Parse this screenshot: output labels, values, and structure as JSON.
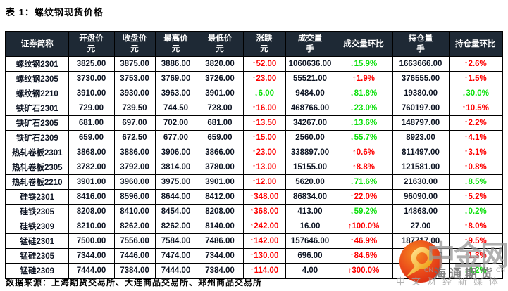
{
  "title": "表 1：螺纹钢现货价格",
  "footer": "数据来源：上海期货交易所、大连商品交易所、郑州商品交易所",
  "colors": {
    "header_bg": "#1e2935",
    "up": "#fe0000",
    "down": "#0be00b",
    "border": "#000000"
  },
  "table": {
    "widths": [
      89,
      65,
      58,
      59,
      66,
      60,
      70,
      82,
      80,
      76
    ],
    "columns": [
      {
        "label": "证券简称",
        "unit": ""
      },
      {
        "label": "开盘价",
        "unit": "元"
      },
      {
        "label": "收盘价",
        "unit": "元"
      },
      {
        "label": "最高价",
        "unit": "元"
      },
      {
        "label": "最低价",
        "unit": "元"
      },
      {
        "label": "涨跌",
        "unit": "元"
      },
      {
        "label": "成交量",
        "unit": "手"
      },
      {
        "label": "成交量环比",
        "unit": ""
      },
      {
        "label": "持仓量",
        "unit": "手"
      },
      {
        "label": "持仓量环比",
        "unit": ""
      }
    ],
    "rows": [
      {
        "name": "螺纹钢2301",
        "open": "3825.00",
        "close": "3875.00",
        "high": "3886.00",
        "low": "3820.00",
        "change": {
          "text": "↑52.00",
          "dir": "up"
        },
        "volume": "1060636.00",
        "volume_mom": {
          "text": "↓15.9%",
          "dir": "down"
        },
        "open_interest": "1663666.00",
        "oi_mom": {
          "text": "↑2.6%",
          "dir": "up"
        }
      },
      {
        "name": "螺纹钢2305",
        "open": "3730.00",
        "close": "3753.00",
        "high": "3769.00",
        "low": "3726.00",
        "change": {
          "text": "↑23.00",
          "dir": "up"
        },
        "volume": "55521.00",
        "volume_mom": {
          "text": "↑1.9%",
          "dir": "up"
        },
        "open_interest": "376555.00",
        "oi_mom": {
          "text": "↑1.5%",
          "dir": "up"
        }
      },
      {
        "name": "螺纹钢2210",
        "open": "3910.00",
        "close": "3930.00",
        "high": "3963.00",
        "low": "3901.00",
        "change": {
          "text": "↓6.00",
          "dir": "down"
        },
        "volume": "9484.00",
        "volume_mom": {
          "text": "↓81.8%",
          "dir": "down"
        },
        "open_interest": "19380.00",
        "oi_mom": {
          "text": "↓30.0%",
          "dir": "down"
        }
      },
      {
        "name": "铁矿石2301",
        "open": "729.00",
        "close": "739.50",
        "high": "744.50",
        "low": "728.00",
        "change": {
          "text": "↑16.00",
          "dir": "up"
        },
        "volume": "468766.00",
        "volume_mom": {
          "text": "↓23.0%",
          "dir": "down"
        },
        "open_interest": "760197.00",
        "oi_mom": {
          "text": "↑10.5%",
          "dir": "up"
        }
      },
      {
        "name": "铁矿石2305",
        "open": "681.00",
        "close": "697.00",
        "high": "702.00",
        "low": "681.00",
        "change": {
          "text": "↑13.50",
          "dir": "up"
        },
        "volume": "34267.00",
        "volume_mom": {
          "text": "↓13.6%",
          "dir": "down"
        },
        "open_interest": "148797.00",
        "oi_mom": {
          "text": "↑2.2%",
          "dir": "up"
        }
      },
      {
        "name": "铁矿石2309",
        "open": "659.00",
        "close": "672.50",
        "high": "677.00",
        "low": "659.00",
        "change": {
          "text": "↑15.00",
          "dir": "up"
        },
        "volume": "2560.00",
        "volume_mom": {
          "text": "↓55.7%",
          "dir": "down"
        },
        "open_interest": "8923.00",
        "oi_mom": {
          "text": "↑4.1%",
          "dir": "up"
        }
      },
      {
        "name": "热轧卷板2301",
        "open": "3868.00",
        "close": "3886.00",
        "high": "3906.00",
        "low": "3866.00",
        "change": {
          "text": "↑23.00",
          "dir": "up"
        },
        "volume": "338897.00",
        "volume_mom": {
          "text": "↑0.6%",
          "dir": "up"
        },
        "open_interest": "811497.00",
        "oi_mom": {
          "text": "↑3.1%",
          "dir": "up"
        }
      },
      {
        "name": "热轧卷板2305",
        "open": "3782.00",
        "close": "3792.00",
        "high": "3814.00",
        "low": "3780.00",
        "change": {
          "text": "↑13.00",
          "dir": "up"
        },
        "volume": "15155.00",
        "volume_mom": {
          "text": "↑8.8%",
          "dir": "up"
        },
        "open_interest": "121581.00",
        "oi_mom": {
          "text": "↑0.8%",
          "dir": "up"
        }
      },
      {
        "name": "热轧卷板2210",
        "open": "3901.00",
        "close": "3960.00",
        "high": "3975.00",
        "low": "3901.00",
        "change": {
          "text": "↑12.00",
          "dir": "up"
        },
        "volume": "5620.00",
        "volume_mom": {
          "text": "↓71.6%",
          "dir": "down"
        },
        "open_interest": "21630.00",
        "oi_mom": {
          "text": "↓8.5%",
          "dir": "down"
        }
      },
      {
        "name": "硅铁2301",
        "open": "8416.00",
        "close": "8596.00",
        "high": "8644.00",
        "low": "8412.00",
        "change": {
          "text": "↑348.00",
          "dir": "up"
        },
        "volume": "86834.00",
        "volume_mom": {
          "text": "↑22.0%",
          "dir": "up"
        },
        "open_interest": "96090.00",
        "oi_mom": {
          "text": "↑5.2%",
          "dir": "up"
        }
      },
      {
        "name": "硅铁2305",
        "open": "8208.00",
        "close": "8410.00",
        "high": "8454.00",
        "low": "8208.00",
        "change": {
          "text": "↑368.00",
          "dir": "up"
        },
        "volume": "413.00",
        "volume_mom": {
          "text": "↓59.2%",
          "dir": "down"
        },
        "open_interest": "14868.00",
        "oi_mom": {
          "text": "↓0.2%",
          "dir": "down"
        }
      },
      {
        "name": "硅铁2309",
        "open": "8210.00",
        "close": "8262.00",
        "high": "8262.00",
        "low": "8140.00",
        "change": {
          "text": "↑242.00",
          "dir": "up"
        },
        "volume": "16.00",
        "volume_mom": {
          "text": "↑100.0%",
          "dir": "up"
        },
        "open_interest": "27.00",
        "oi_mom": {
          "text": "↑8.0%",
          "dir": "up"
        }
      },
      {
        "name": "锰硅2301",
        "open": "7500.00",
        "close": "7556.00",
        "high": "7584.00",
        "low": "7486.00",
        "change": {
          "text": "↑142.00",
          "dir": "up"
        },
        "volume": "157646.00",
        "volume_mom": {
          "text": "↑46.9%",
          "dir": "up"
        },
        "open_interest": "187717.00",
        "oi_mom": {
          "text": "↑9.5%",
          "dir": "up"
        }
      },
      {
        "name": "锰硅2305",
        "open": "7344.00",
        "close": "7446.00",
        "high": "7474.00",
        "low": "7344.00",
        "change": {
          "text": "↑130.00",
          "dir": "up"
        },
        "volume": "696.00",
        "volume_mom": {
          "text": "↑84.6%",
          "dir": "up"
        },
        "open_interest": {
          "text": "00",
          "align": "right"
        },
        "oi_mom": {
          "text": "↑1.3%",
          "dir": "up"
        }
      },
      {
        "name": "锰硅2309",
        "open": "7444.00",
        "close": "7384.00",
        "high": "7444.00",
        "low": "7384.00",
        "change": {
          "text": "↑114.00",
          "dir": "up"
        },
        "volume": "4.00",
        "volume_mom": {
          "text": "↑300.0%",
          "dir": "up"
        },
        "open_interest": {
          "text": ""
        },
        "oi_mom": {
          "text": "↓4.2%",
          "dir": "down"
        }
      }
    ]
  },
  "watermark": {
    "brand": "中金网",
    "sub_brand": "海通期货",
    "small_left": "··CN",
    "small_right": "CN",
    "tagline": "中文财经新媒体"
  }
}
